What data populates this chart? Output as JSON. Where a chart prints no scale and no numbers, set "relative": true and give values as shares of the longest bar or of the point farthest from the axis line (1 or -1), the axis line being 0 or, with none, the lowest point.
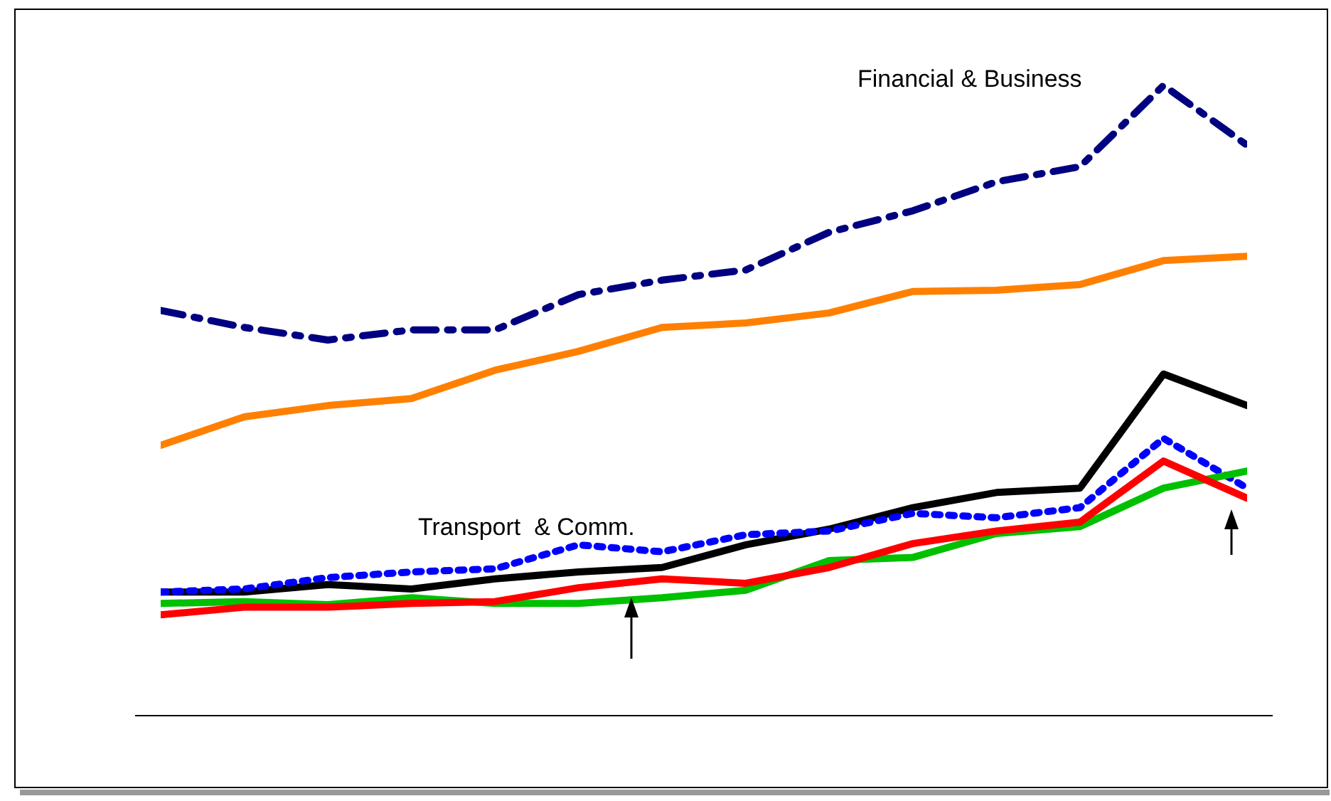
{
  "chart_data": {
    "type": "line",
    "relative": true,
    "tick_labels": false,
    "grid": false,
    "legend": false,
    "marker": "none",
    "categories": [
      null,
      null,
      null,
      null,
      null,
      null,
      null,
      null,
      null,
      null,
      null,
      null,
      null,
      null
    ],
    "series": [
      {
        "color": "#000080",
        "line_style": "dashed",
        "values": [
          0.643,
          0.616,
          0.596,
          0.612,
          0.612,
          0.668,
          0.691,
          0.707,
          0.767,
          0.801,
          0.847,
          0.871,
          1,
          0.905
        ]
      },
      {
        "color": "#ff8000",
        "line_style": "solid",
        "values": [
          0.429,
          0.474,
          0.492,
          0.503,
          0.548,
          0.578,
          0.616,
          0.623,
          0.639,
          0.673,
          0.675,
          0.684,
          0.722,
          0.729
        ]
      },
      {
        "color": "#000000",
        "line_style": "solid",
        "values": [
          0.196,
          0.196,
          0.208,
          0.201,
          0.217,
          0.228,
          0.235,
          0.271,
          0.296,
          0.33,
          0.354,
          0.361,
          0.542,
          0.492
        ]
      },
      {
        "color": "#0000ff",
        "line_style": "dotted",
        "values": [
          0.196,
          0.201,
          0.219,
          0.228,
          0.233,
          0.271,
          0.26,
          0.287,
          0.293,
          0.321,
          0.314,
          0.33,
          0.44,
          0.361
        ]
      },
      {
        "color": "#00c000",
        "line_style": "solid",
        "values": [
          0.178,
          0.181,
          0.176,
          0.187,
          0.178,
          0.178,
          0.187,
          0.199,
          0.246,
          0.251,
          0.289,
          0.3,
          0.361,
          0.388
        ]
      },
      {
        "color": "#ff0000",
        "line_style": "solid",
        "values": [
          0.16,
          0.172,
          0.172,
          0.178,
          0.181,
          0.203,
          0.217,
          0.21,
          0.235,
          0.273,
          0.293,
          0.307,
          0.404,
          0.345
        ]
      }
    ],
    "annotations": [
      "Financial & Business",
      "Transport  & Comm."
    ]
  }
}
